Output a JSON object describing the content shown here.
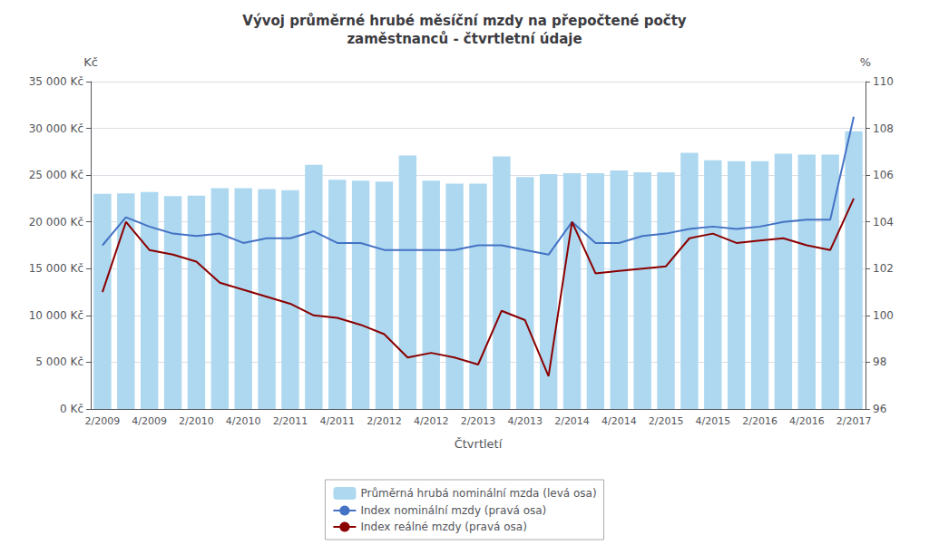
{
  "chart_data": {
    "type": "bar",
    "title": "Vývoj průměrné hrubé měsíční mzdy na přepočtené počty\nzaměstnanců - čtvrtletní údaje",
    "xlabel": "Čtvrtletí",
    "ylabel": "Kč",
    "y2label": "%",
    "categories": [
      "2/2009",
      null,
      "4/2009",
      null,
      "2/2010",
      null,
      "4/2010",
      null,
      "2/2011",
      null,
      "4/2011",
      null,
      "2/2012",
      null,
      "4/2012",
      null,
      "2/2013",
      null,
      "4/2013",
      null,
      "2/2014",
      null,
      "4/2014",
      null,
      "2/2015",
      null,
      "4/2015",
      null,
      "2/2016",
      null,
      "4/2016",
      null,
      "2/2017"
    ],
    "series": [
      {
        "name": "Průměrná hrubá nominální mzda (levá osa)",
        "type": "bar",
        "color": "#add8f0",
        "values": [
          23000,
          23050,
          23200,
          22750,
          22800,
          23600,
          23600,
          23500,
          23400,
          26100,
          24500,
          24400,
          24300,
          27100,
          24400,
          24100,
          24100,
          27000,
          24800,
          25100,
          25200,
          25200,
          25500,
          25300,
          25300,
          27400,
          26600,
          26500,
          26500,
          27300,
          27200,
          27200,
          29700
        ]
      },
      {
        "name": "Index nominální mzdy (pravá osa)",
        "type": "line",
        "axis": "y2",
        "color": "#4472c4",
        "values": [
          103.0,
          104.2,
          103.8,
          103.5,
          103.4,
          103.5,
          103.1,
          103.3,
          103.3,
          103.6,
          103.1,
          103.1,
          102.8,
          102.8,
          102.8,
          102.8,
          103.0,
          103.0,
          102.8,
          102.6,
          104.0,
          103.1,
          103.1,
          103.4,
          103.5,
          103.7,
          103.8,
          103.7,
          103.8,
          104.0,
          104.1,
          104.1,
          108.5
        ]
      },
      {
        "name": "Index reálné mzdy (pravá osa)",
        "type": "line",
        "axis": "y2",
        "color": "#8b0000",
        "values": [
          101.0,
          104.0,
          102.8,
          102.6,
          102.3,
          101.4,
          101.1,
          100.8,
          100.5,
          100.0,
          99.9,
          99.6,
          99.2,
          98.2,
          98.4,
          98.2,
          97.9,
          100.2,
          99.8,
          97.4,
          104.0,
          101.8,
          101.9,
          102.0,
          102.1,
          103.3,
          103.5,
          103.1,
          103.2,
          103.3,
          103.0,
          102.8,
          105.0
        ]
      }
    ],
    "ylim": [
      0,
      35000
    ],
    "yticks": [
      {
        "value": 0,
        "label": "0 Kč"
      },
      {
        "value": 5000,
        "label": "5 000 Kč"
      },
      {
        "value": 10000,
        "label": "10 000 Kč"
      },
      {
        "value": 15000,
        "label": "15 000 Kč"
      },
      {
        "value": 20000,
        "label": "20 000 Kč"
      },
      {
        "value": 25000,
        "label": "25 000 Kč"
      },
      {
        "value": 30000,
        "label": "30 000 Kč"
      },
      {
        "value": 35000,
        "label": "35 000 Kč"
      }
    ],
    "y2lim": [
      96,
      110
    ],
    "y2ticks": [
      96,
      98,
      100,
      102,
      104,
      106,
      108,
      110
    ],
    "grid": true,
    "legend": "bottom"
  }
}
